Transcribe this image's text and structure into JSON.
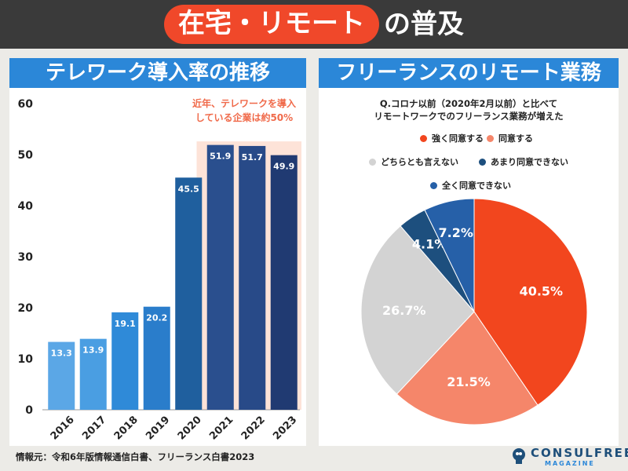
{
  "title": {
    "highlight": "在宅・リモート",
    "rest": "の普及"
  },
  "left_panel": {
    "heading": "テレワーク導入率の推移"
  },
  "right_panel": {
    "heading": "フリーランスのリモート業務",
    "question_line1": "Q.コロナ以前（2020年2月以前）と比べて",
    "question_line2": "リモートワークでのフリーランス業務が増えた"
  },
  "source": "情報元：令和6年版情報通信白書、フリーランス白書2023",
  "brand": {
    "name": "CONSULFREE",
    "sub": "MAGAZINE"
  },
  "chart_data": [
    {
      "type": "bar",
      "title": "テレワーク導入率の推移",
      "categories": [
        "2016",
        "2017",
        "2018",
        "2019",
        "2020",
        "2021",
        "2022",
        "2023"
      ],
      "values": [
        13.3,
        13.9,
        19.1,
        20.2,
        45.5,
        51.9,
        51.7,
        49.9
      ],
      "value_labels": [
        "13.3",
        "13.9",
        "19.1",
        "20.2",
        "45.5",
        "51.9",
        "51.7",
        "49.9"
      ],
      "bar_colors": [
        "#5ba7e6",
        "#4a9ee2",
        "#2f8ad8",
        "#2a7dcb",
        "#1f5f9e",
        "#2a4f8e",
        "#284a88",
        "#203a72"
      ],
      "yticks": [
        "0",
        "10",
        "20",
        "30",
        "40",
        "50",
        "60"
      ],
      "ylim": [
        0,
        60
      ],
      "annotation_line1": "近年、テレワークを導入",
      "annotation_line2": "している企業は約50%",
      "annotation_color": "#f06a4a",
      "highlight_color": "#fde3d8",
      "highlight_categories": [
        "2021",
        "2022",
        "2023"
      ]
    },
    {
      "type": "pie",
      "title": "Q.コロナ以前（2020年2月以前）と比べてリモートワークでのフリーランス業務が増えた",
      "slices": [
        {
          "label": "強く同意する",
          "value": 40.5,
          "value_label": "40.5%",
          "color": "#f2461e"
        },
        {
          "label": "同意する",
          "value": 21.5,
          "value_label": "21.5%",
          "color": "#f5866a"
        },
        {
          "label": "どちらとも言えない",
          "value": 26.7,
          "value_label": "26.7%",
          "color": "#d3d3d3"
        },
        {
          "label": "あまり同意できない",
          "value": 4.1,
          "value_label": "4.1%",
          "color": "#1d4f7e"
        },
        {
          "label": "全く同意できない",
          "value": 7.2,
          "value_label": "7.2%",
          "color": "#2660a8"
        }
      ]
    }
  ]
}
